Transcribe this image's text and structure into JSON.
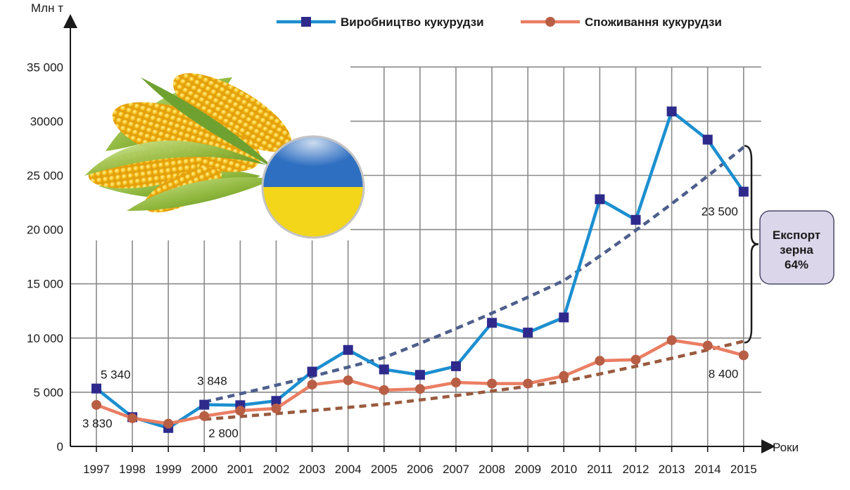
{
  "chart_data": {
    "type": "line",
    "ylabel": "Млн т",
    "xlabel": "Роки",
    "ylim": [
      0,
      35000
    ],
    "y_ticks": [
      "0",
      "5 000",
      "10 000",
      "15 000",
      "20 000",
      "25 000",
      "30000",
      "35 000"
    ],
    "y_tick_values": [
      0,
      5000,
      10000,
      15000,
      20000,
      25000,
      30000,
      35000
    ],
    "categories": [
      "1997",
      "1998",
      "1999",
      "2000",
      "2001",
      "2002",
      "2003",
      "2004",
      "2005",
      "2006",
      "2007",
      "2008",
      "2009",
      "2010",
      "2011",
      "2012",
      "2013",
      "2014",
      "2015"
    ],
    "series": [
      {
        "name": "Виробництво кукурудзи",
        "color": "#1c8fd0",
        "marker": "square",
        "marker_color": "#2e2a8c",
        "values": [
          5340,
          2700,
          1700,
          3848,
          3800,
          4200,
          6900,
          8900,
          7100,
          6600,
          7400,
          11400,
          10500,
          11900,
          22800,
          20900,
          30900,
          28300,
          23500
        ]
      },
      {
        "name": "Споживання кукурудзи",
        "color": "#ea7e63",
        "marker": "circle",
        "marker_color": "#b85e45",
        "values": [
          3830,
          2600,
          2100,
          2800,
          3300,
          3500,
          5700,
          6100,
          5200,
          5300,
          5900,
          5800,
          5800,
          6500,
          7900,
          8000,
          9800,
          9300,
          8400
        ]
      }
    ],
    "trendlines": [
      {
        "series": "Виробництво кукурудзи",
        "style": "dashed",
        "color": "#4d5f8c",
        "points": [
          [
            "2000",
            4100
          ],
          [
            "2005",
            8200
          ],
          [
            "2010",
            15300
          ],
          [
            "2015",
            27600
          ]
        ]
      },
      {
        "series": "Споживання кукурудзи",
        "style": "dashed",
        "color": "#9a5a3e",
        "points": [
          [
            "2000",
            2500
          ],
          [
            "2005",
            3900
          ],
          [
            "2010",
            6000
          ],
          [
            "2015",
            9700
          ]
        ]
      }
    ],
    "data_labels": [
      {
        "text": "5 340",
        "series": "Виробництво кукурудзи",
        "category": "1997"
      },
      {
        "text": "3 830",
        "series": "Споживання кукурудзи",
        "category": "1997"
      },
      {
        "text": "3 848",
        "series": "Виробництво кукурудзи",
        "category": "2000"
      },
      {
        "text": "2 800",
        "series": "Споживання кукурудзи",
        "category": "2000"
      },
      {
        "text": "23 500",
        "series": "Виробництво кукурудзи",
        "category": "2015"
      },
      {
        "text": "8 400",
        "series": "Споживання кукурудзи",
        "category": "2015"
      }
    ],
    "annotation": {
      "lines": [
        "Експорт",
        "зерна",
        "64%"
      ]
    },
    "grid": true,
    "legend_position": "top-right"
  },
  "illustration": {
    "description_icon": "corn-with-ukrainian-flag-icon",
    "colors": {
      "flag_blue": "#2f6fc1",
      "flag_yellow": "#f3d51a",
      "corn_yellow": "#f5b615",
      "leaf_green": "#8cb53a"
    }
  }
}
